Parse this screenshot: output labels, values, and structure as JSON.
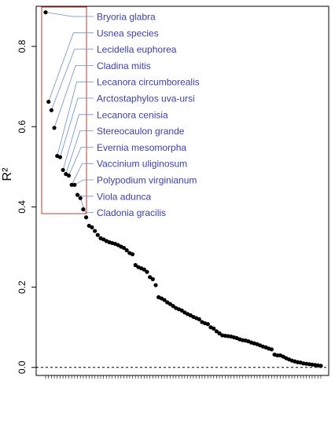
{
  "chart_data": {
    "type": "scatter",
    "title": "",
    "xlabel": "",
    "ylabel": "R²",
    "ylim": [
      -0.02,
      0.9
    ],
    "yticks": [
      0.0,
      0.2,
      0.4,
      0.6,
      0.8
    ],
    "yticklabels": [
      "0.0",
      "0.2",
      "0.4",
      "0.6",
      "0.8"
    ],
    "reference_line": {
      "y": 0,
      "style": "dashed"
    },
    "highlight_box_color": "#c0392b",
    "annotation_color": "#3b3fa8",
    "point_color": "#000000",
    "annotated": [
      {
        "label": "Bryoria glabra",
        "value": 0.885
      },
      {
        "label": "Usnea species",
        "value": 0.662
      },
      {
        "label": "Lecidella euphorea",
        "value": 0.641
      },
      {
        "label": "Cladina mitis",
        "value": 0.597
      },
      {
        "label": "Lecanora circumborealis",
        "value": 0.527
      },
      {
        "label": "Arctostaphylos uva-ursi",
        "value": 0.524
      },
      {
        "label": "Lecanora cenisia",
        "value": 0.492
      },
      {
        "label": "Stereocaulon grande",
        "value": 0.482
      },
      {
        "label": "Evernia mesomorpha",
        "value": 0.478
      },
      {
        "label": "Vaccinium uliginosum",
        "value": 0.455
      },
      {
        "label": "Polypodium virginianum",
        "value": 0.455
      },
      {
        "label": "Viola adunca",
        "value": 0.43
      },
      {
        "label": "Cladonia gracilis",
        "value": 0.422
      }
    ],
    "values": [
      0.885,
      0.662,
      0.641,
      0.597,
      0.527,
      0.524,
      0.492,
      0.482,
      0.478,
      0.455,
      0.455,
      0.43,
      0.422,
      0.394,
      0.374,
      0.353,
      0.349,
      0.34,
      0.33,
      0.322,
      0.319,
      0.315,
      0.312,
      0.31,
      0.308,
      0.305,
      0.301,
      0.298,
      0.292,
      0.285,
      0.282,
      0.255,
      0.25,
      0.247,
      0.244,
      0.238,
      0.225,
      0.22,
      0.205,
      0.175,
      0.172,
      0.168,
      0.162,
      0.158,
      0.153,
      0.148,
      0.145,
      0.142,
      0.137,
      0.133,
      0.13,
      0.126,
      0.123,
      0.12,
      0.113,
      0.11,
      0.108,
      0.1,
      0.097,
      0.09,
      0.085,
      0.08,
      0.079,
      0.078,
      0.077,
      0.075,
      0.073,
      0.07,
      0.068,
      0.067,
      0.065,
      0.062,
      0.06,
      0.058,
      0.055,
      0.052,
      0.05,
      0.047,
      0.045,
      0.032,
      0.03,
      0.03,
      0.027,
      0.023,
      0.02,
      0.017,
      0.015,
      0.013,
      0.012,
      0.01,
      0.009,
      0.008,
      0.007,
      0.006,
      0.005,
      0.004
    ]
  }
}
